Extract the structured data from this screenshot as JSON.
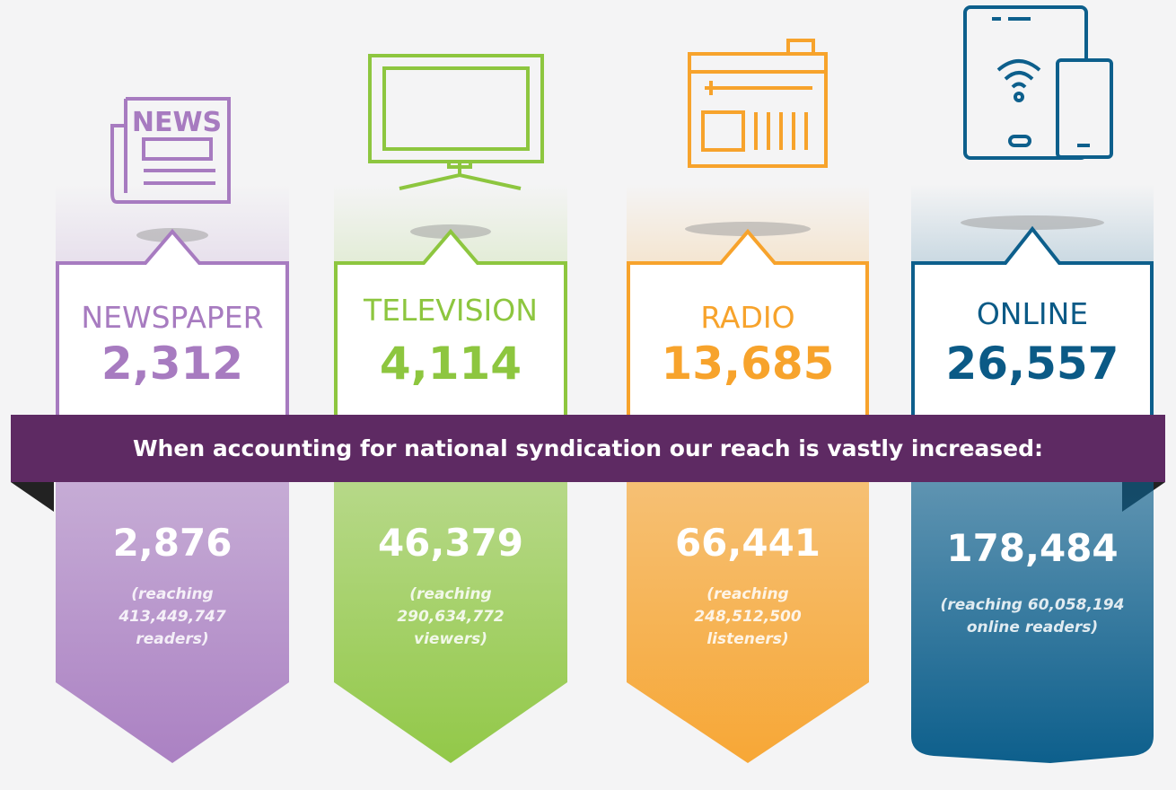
{
  "icon_label": "NEWS",
  "banner": "When accounting for national syndication our reach is vastly increased:",
  "columns": [
    {
      "label": "NEWSPAPER",
      "count": "2,312",
      "syndicated": "2,876",
      "reach": "(reaching 413,449,747 readers)"
    },
    {
      "label": "TELEVISION",
      "count": "4,114",
      "syndicated": "46,379",
      "reach": "(reaching 290,634,772 viewers)"
    },
    {
      "label": "RADIO",
      "count": "13,685",
      "syndicated": "66,441",
      "reach": "(reaching 248,512,500 listeners)"
    },
    {
      "label": "ONLINE",
      "count": "26,557",
      "syndicated": "178,484",
      "reach": "(reaching 60,058,194 online readers)"
    }
  ]
}
